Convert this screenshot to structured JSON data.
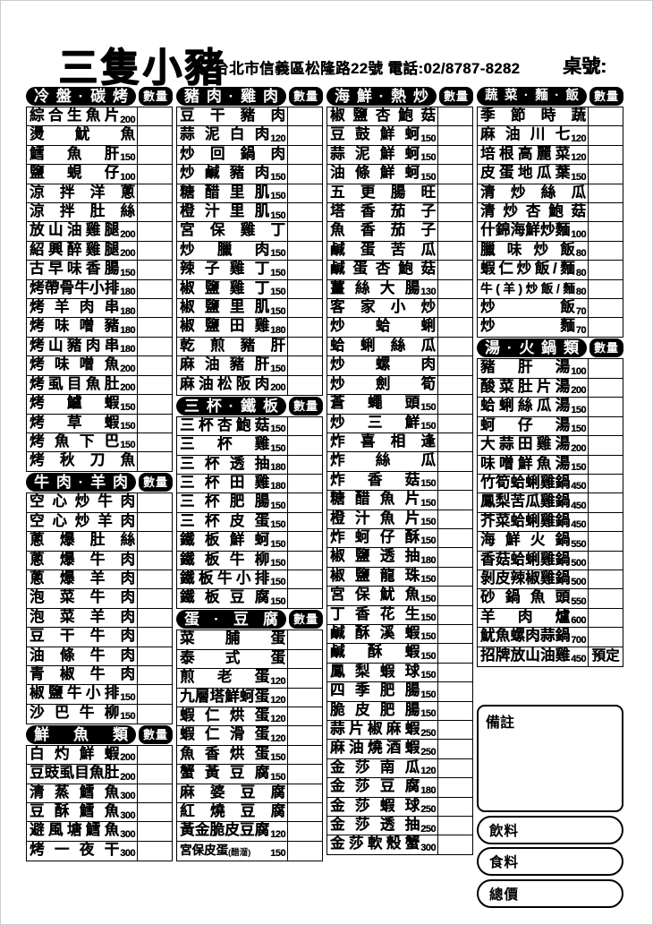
{
  "page": {
    "title_logo": "三隻小豬",
    "address_phone": "台北市信義區松隆路22號 電話:02/8787-8282",
    "table_label": "桌號:"
  },
  "qty_label": "數量",
  "notes_label": "備註",
  "footer_boxes": [
    "飲料",
    "食料",
    "總價"
  ],
  "colors": {
    "ink": "#000000",
    "paper": "#ffffff"
  },
  "columns": [
    {
      "sections": [
        {
          "header": "冷盤·碳烤",
          "items": [
            {
              "n": "綜合生魚片",
              "p": "200"
            },
            {
              "n": "燙魷魚"
            },
            {
              "n": "鱈魚肝",
              "p": "150"
            },
            {
              "n": "鹽蜆仔",
              "p": "100"
            },
            {
              "n": "涼拌洋蔥"
            },
            {
              "n": "涼拌肚絲"
            },
            {
              "n": "放山油雞腿",
              "p": "200"
            },
            {
              "n": "紹興醉雞腿",
              "p": "200"
            },
            {
              "n": "古早味香腸",
              "p": "150"
            },
            {
              "n": "烤帶骨牛小排",
              "p": "180"
            },
            {
              "n": "烤羊肉串",
              "p": "180"
            },
            {
              "n": "烤味噌豬",
              "p": "180"
            },
            {
              "n": "烤山豬肉串",
              "p": "180"
            },
            {
              "n": "烤味噌魚",
              "p": "200"
            },
            {
              "n": "烤虱目魚肚",
              "p": "200"
            },
            {
              "n": "烤鱸蝦",
              "p": "150"
            },
            {
              "n": "烤草蝦",
              "p": "150"
            },
            {
              "n": "烤魚下巴",
              "p": "150"
            },
            {
              "n": "烤秋刀魚"
            }
          ]
        },
        {
          "header": "牛肉·羊肉",
          "items": [
            {
              "n": "空心炒牛肉"
            },
            {
              "n": "空心炒羊肉"
            },
            {
              "n": "蔥爆肚絲"
            },
            {
              "n": "蔥爆牛肉"
            },
            {
              "n": "蔥爆羊肉"
            },
            {
              "n": "泡菜牛肉"
            },
            {
              "n": "泡菜羊肉"
            },
            {
              "n": "豆干牛肉"
            },
            {
              "n": "油條牛肉"
            },
            {
              "n": "青椒牛肉"
            },
            {
              "n": "椒鹽牛小排",
              "p": "150"
            },
            {
              "n": "沙巴牛柳",
              "p": "150"
            }
          ]
        },
        {
          "header": "鮮魚類",
          "items": [
            {
              "n": "白灼鮮蝦",
              "p": "200"
            },
            {
              "n": "豆豉虱目魚肚",
              "p": "200"
            },
            {
              "n": "清蒸鱈魚",
              "p": "300"
            },
            {
              "n": "豆酥鱈魚",
              "p": "300"
            },
            {
              "n": "避風塘鱈魚",
              "p": "300"
            },
            {
              "n": "烤一夜干",
              "p": "300"
            }
          ]
        }
      ]
    },
    {
      "sections": [
        {
          "header": "豬肉·雞肉",
          "items": [
            {
              "n": "豆干豬肉"
            },
            {
              "n": "蒜泥白肉",
              "p": "120"
            },
            {
              "n": "炒回鍋肉"
            },
            {
              "n": "炒鹹豬肉",
              "p": "150"
            },
            {
              "n": "糖醋里肌",
              "p": "150"
            },
            {
              "n": "橙汁里肌",
              "p": "150"
            },
            {
              "n": "宮保雞丁"
            },
            {
              "n": "炒臘肉",
              "p": "150"
            },
            {
              "n": "辣子雞丁",
              "p": "150"
            },
            {
              "n": "椒鹽雞丁",
              "p": "150"
            },
            {
              "n": "椒鹽里肌",
              "p": "150"
            },
            {
              "n": "椒鹽田雞",
              "p": "180"
            },
            {
              "n": "乾煎豬肝"
            },
            {
              "n": "麻油豬肝",
              "p": "150"
            },
            {
              "n": "麻油松阪肉",
              "p": "200"
            }
          ]
        },
        {
          "header": "三杯·鐵板",
          "items": [
            {
              "n": "三杯杏鮑菇",
              "p": "150"
            },
            {
              "n": "三杯雞",
              "p": "150"
            },
            {
              "n": "三杯透抽",
              "p": "180"
            },
            {
              "n": "三杯田雞",
              "p": "180"
            },
            {
              "n": "三杯肥腸",
              "p": "150"
            },
            {
              "n": "三杯皮蛋",
              "p": "150"
            },
            {
              "n": "鐵板鮮蚵",
              "p": "150"
            },
            {
              "n": "鐵板牛柳",
              "p": "150"
            },
            {
              "n": "鐵板牛小排",
              "p": "150"
            },
            {
              "n": "鐵板豆腐",
              "p": "150"
            }
          ]
        },
        {
          "header": "蛋·豆腐",
          "items": [
            {
              "n": "菜脯蛋"
            },
            {
              "n": "泰式蛋"
            },
            {
              "n": "煎老蛋",
              "p": "120"
            },
            {
              "n": "九層塔鮮蚵蛋",
              "p": "120"
            },
            {
              "n": "蝦仁烘蛋",
              "p": "120"
            },
            {
              "n": "蝦仁滑蛋",
              "p": "120"
            },
            {
              "n": "魚香烘蛋",
              "p": "150"
            },
            {
              "n": "蟹黃豆腐",
              "p": "150"
            },
            {
              "n": "麻婆豆腐"
            },
            {
              "n": "紅燒豆腐"
            },
            {
              "n": "黃金脆皮豆腐",
              "p": "120"
            },
            {
              "n": "宮保皮蛋",
              "note": "(醋溜)",
              "p": "150"
            }
          ]
        }
      ]
    },
    {
      "sections": [
        {
          "header": "海鮮·熱炒",
          "items": [
            {
              "n": "椒鹽杏鮑菇"
            },
            {
              "n": "豆鼓鮮蚵",
              "p": "150"
            },
            {
              "n": "蒜泥鮮蚵",
              "p": "150"
            },
            {
              "n": "油條鮮蚵",
              "p": "150"
            },
            {
              "n": "五更腸旺"
            },
            {
              "n": "塔香茄子"
            },
            {
              "n": "魚香茄子"
            },
            {
              "n": "鹹蛋苦瓜"
            },
            {
              "n": "鹹蛋杏鮑菇"
            },
            {
              "n": "薑絲大腸",
              "p": "130"
            },
            {
              "n": "客家小炒"
            },
            {
              "n": "炒蛤蜊"
            },
            {
              "n": "蛤蜊絲瓜"
            },
            {
              "n": "炒螺肉"
            },
            {
              "n": "炒劍筍"
            },
            {
              "n": "蒼蠅頭",
              "p": "150"
            },
            {
              "n": "炒三鮮",
              "p": "150"
            },
            {
              "n": "炸喜相逢"
            },
            {
              "n": "炸絲瓜"
            },
            {
              "n": "炸香菇",
              "p": "150"
            },
            {
              "n": "糖醋魚片",
              "p": "150"
            },
            {
              "n": "橙汁魚片",
              "p": "150"
            },
            {
              "n": "炸蚵仔酥",
              "p": "150"
            },
            {
              "n": "椒鹽透抽",
              "p": "180"
            },
            {
              "n": "椒鹽龍珠",
              "p": "150"
            },
            {
              "n": "宮保魷魚",
              "p": "150"
            },
            {
              "n": "丁香花生",
              "p": "150"
            },
            {
              "n": "鹹酥溪蝦",
              "p": "150"
            },
            {
              "n": "鹹酥蝦",
              "p": "150"
            },
            {
              "n": "鳳梨蝦球",
              "p": "150"
            },
            {
              "n": "四季肥腸",
              "p": "150"
            },
            {
              "n": "脆皮肥腸",
              "p": "150"
            },
            {
              "n": "蒜片椒麻蝦",
              "p": "250"
            },
            {
              "n": "麻油燒酒蝦",
              "p": "250"
            },
            {
              "n": "金莎南瓜",
              "p": "120"
            },
            {
              "n": "金莎豆腐",
              "p": "180"
            },
            {
              "n": "金莎蝦球",
              "p": "250"
            },
            {
              "n": "金莎透抽",
              "p": "250"
            },
            {
              "n": "金莎軟殼蟹",
              "p": "300"
            }
          ]
        }
      ]
    },
    {
      "sections": [
        {
          "header": "蔬菜·麵·飯",
          "items": [
            {
              "n": "季節時蔬"
            },
            {
              "n": "麻油川七",
              "p": "120"
            },
            {
              "n": "培根高麗菜",
              "p": "120"
            },
            {
              "n": "皮蛋地瓜葉",
              "p": "150"
            },
            {
              "n": "清炒絲瓜"
            },
            {
              "n": "清炒杏鮑菇"
            },
            {
              "n": "什錦海鮮炒麵",
              "p": "100"
            },
            {
              "n": "臘味炒飯",
              "p": "80"
            },
            {
              "n": "蝦仁炒飯/麵",
              "p": "80"
            },
            {
              "n": "牛(羊)炒飯/麵",
              "p": "80"
            },
            {
              "n": "炒飯",
              "p": "70"
            },
            {
              "n": "炒麵",
              "p": "70"
            }
          ]
        },
        {
          "header": "湯·火鍋類",
          "items": [
            {
              "n": "豬肝湯",
              "p": "100"
            },
            {
              "n": "酸菜肚片湯",
              "p": "200"
            },
            {
              "n": "蛤蜊絲瓜湯",
              "p": "150"
            },
            {
              "n": "蚵仔湯",
              "p": "150"
            },
            {
              "n": "大蒜田雞湯",
              "p": "200"
            },
            {
              "n": "味噌鮮魚湯",
              "p": "150"
            },
            {
              "n": "竹筍蛤蜊雞鍋",
              "p": "450"
            },
            {
              "n": "鳳梨苦瓜雞鍋",
              "p": "450"
            },
            {
              "n": "芥菜蛤蜊雞鍋",
              "p": "450"
            },
            {
              "n": "海鮮火鍋",
              "p": "550"
            },
            {
              "n": "香菇蛤蜊雞鍋",
              "p": "500"
            },
            {
              "n": "剝皮辣椒雞鍋",
              "p": "500"
            },
            {
              "n": "砂鍋魚頭",
              "p": "550"
            },
            {
              "n": "羊肉爐",
              "p": "600"
            },
            {
              "n": "魷魚螺肉蒜鍋",
              "p": "700"
            },
            {
              "n": "招牌放山油雞",
              "p": "450",
              "q": "預定"
            }
          ]
        }
      ]
    }
  ]
}
